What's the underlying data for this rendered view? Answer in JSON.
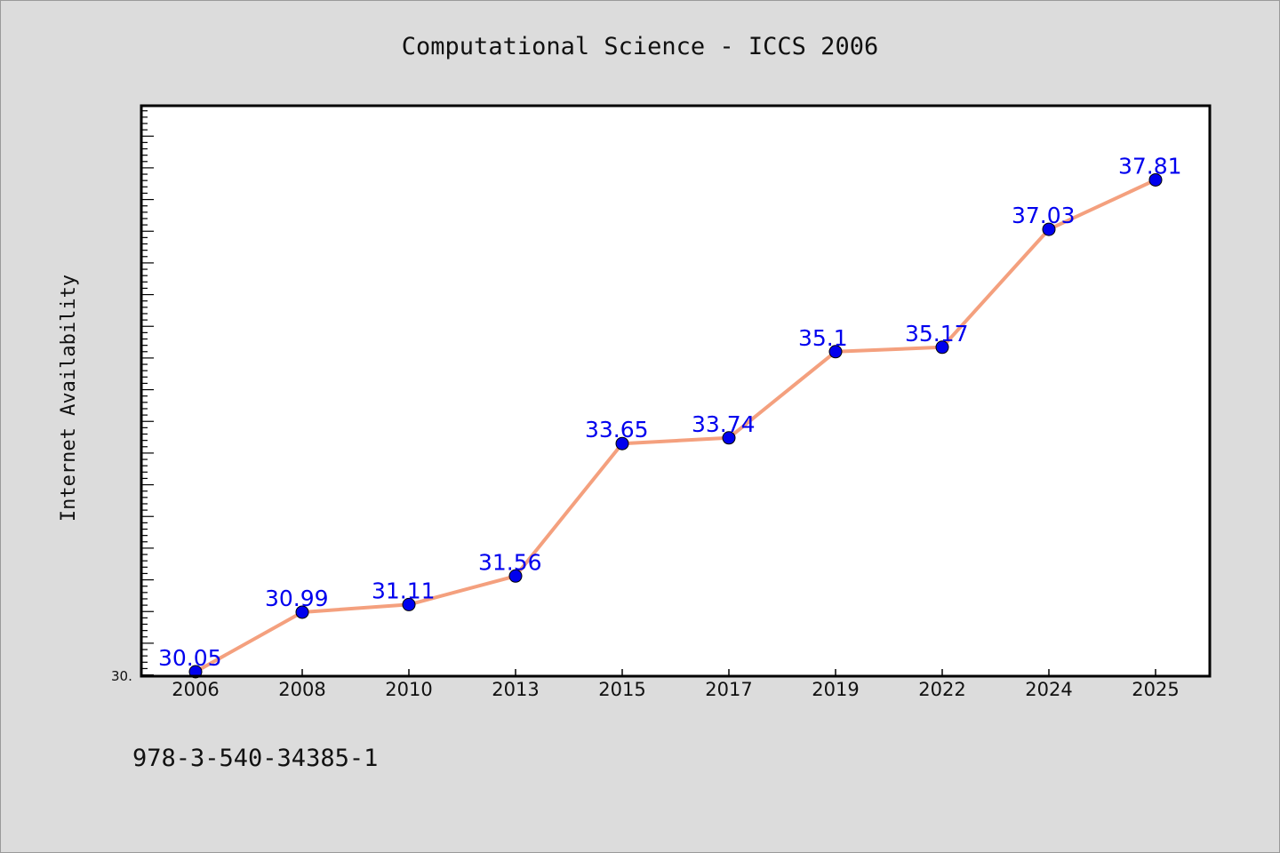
{
  "chart_data": {
    "type": "line",
    "title": "Computational Science - ICCS 2006",
    "ylabel": "Internet Availability",
    "xlabel": "",
    "categories": [
      "2006",
      "2008",
      "2010",
      "2013",
      "2015",
      "2017",
      "2019",
      "2022",
      "2024",
      "2025"
    ],
    "series": [
      {
        "values": [
          30.05,
          30.99,
          31.11,
          31.56,
          33.65,
          33.74,
          35.1,
          35.17,
          37.03,
          37.81
        ]
      }
    ],
    "data_labels": [
      "30.05",
      "30.99",
      "31.11",
      "31.56",
      "33.65",
      "33.74",
      "35.1",
      "35.17",
      "37.03",
      "37.81"
    ],
    "ylim": [
      29.98,
      38.98
    ],
    "y_min_label": "30.",
    "grid": false,
    "line_color": "#f4a07e",
    "marker_color": "#0000ee",
    "label_color": "#0000ee"
  },
  "footer": {
    "isbn": "978-3-540-34385-1"
  }
}
